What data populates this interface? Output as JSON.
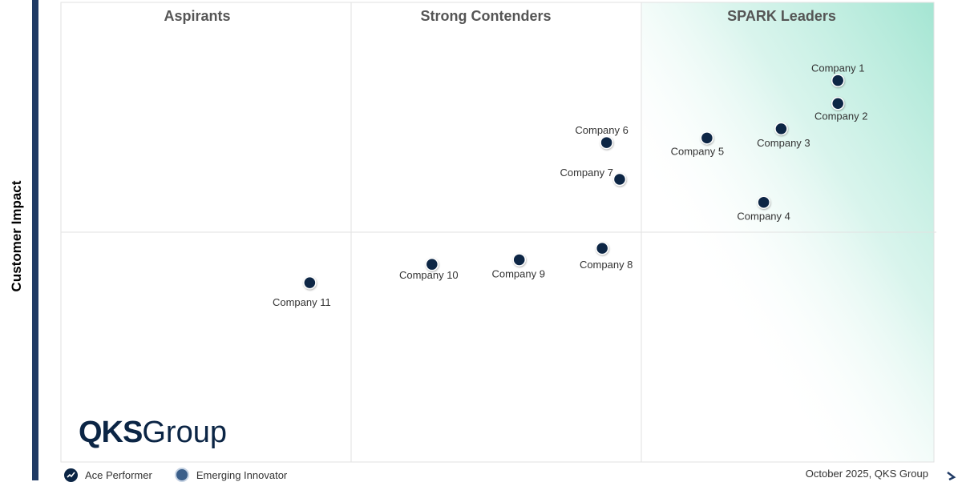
{
  "chart_data": {
    "type": "scatter",
    "title": "",
    "ylabel": "Customer Impact",
    "xlabel": "",
    "xlim": [
      0,
      100
    ],
    "ylim": [
      0,
      100
    ],
    "grid": true,
    "quadrants": [
      "Aspirants",
      "Strong Contenders",
      "SPARK Leaders"
    ],
    "points": [
      {
        "label": "Company 1",
        "x": 89,
        "y": 83
      },
      {
        "label": "Company 2",
        "x": 89,
        "y": 78
      },
      {
        "label": "Company 3",
        "x": 82.5,
        "y": 72.5
      },
      {
        "label": "Company 4",
        "x": 80.5,
        "y": 56.5
      },
      {
        "label": "Company 5",
        "x": 74,
        "y": 70.5
      },
      {
        "label": "Company 6",
        "x": 62.5,
        "y": 69.5
      },
      {
        "label": "Company  7",
        "x": 64,
        "y": 61.5
      },
      {
        "label": "Company 8",
        "x": 62,
        "y": 46.5
      },
      {
        "label": "Company 9",
        "x": 52.5,
        "y": 44
      },
      {
        "label": "Company 10",
        "x": 42.5,
        "y": 43
      },
      {
        "label": "Company 11",
        "x": 28.5,
        "y": 39
      }
    ],
    "legend": [
      {
        "label": "Ace Performer",
        "icon": "ace-performer-icon"
      },
      {
        "label": "Emerging Innovator",
        "icon": "emerging-innovator-icon"
      }
    ],
    "legend_position": "bottom-left"
  },
  "branding": {
    "logo_bold": "QKS",
    "logo_regular": "Group",
    "footer": "October 2025, QKS Group"
  },
  "colors": {
    "point": "#0b2545",
    "axis_bar": "#1f3a64",
    "leader_gradient": "#a8e8d6",
    "grid": "#e2e2e2"
  }
}
